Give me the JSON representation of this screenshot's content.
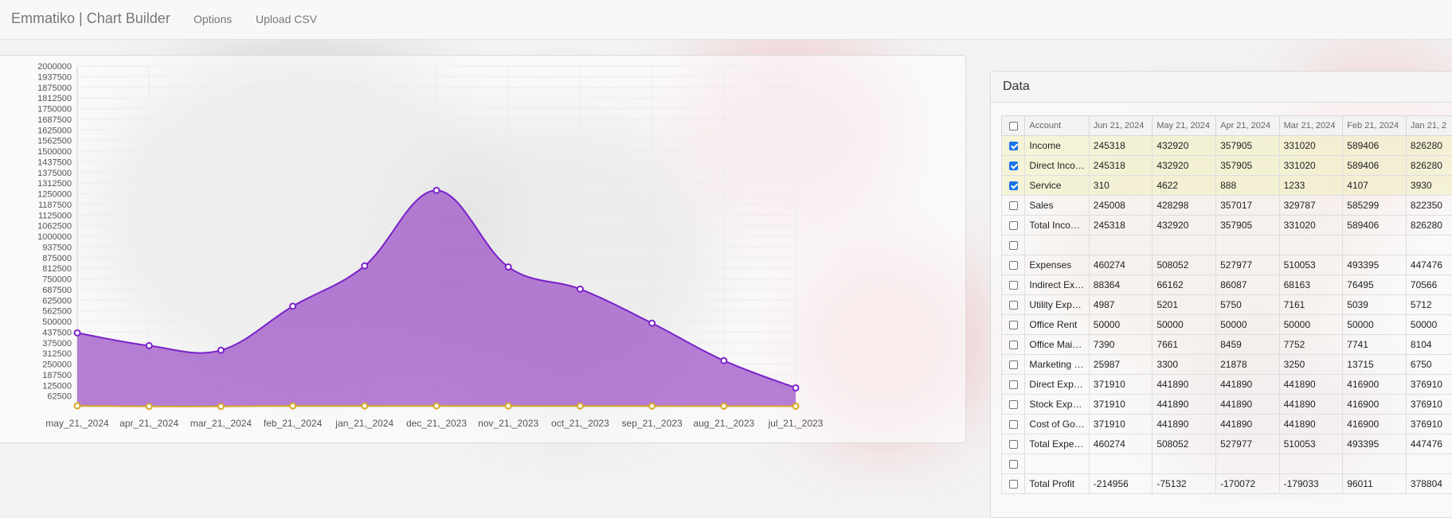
{
  "app": {
    "title": "Emmatiko | Chart Builder"
  },
  "nav": {
    "options": "Options",
    "upload": "Upload CSV"
  },
  "data_panel": {
    "title": "Data"
  },
  "table": {
    "columns": [
      "Account",
      "Jun 21, 2024",
      "May 21, 2024",
      "Apr 21, 2024",
      "Mar 21, 2024",
      "Feb 21, 2024",
      "Jan 21, 2"
    ],
    "rows": [
      {
        "checked": true,
        "cells": [
          "Income",
          "245318",
          "432920",
          "357905",
          "331020",
          "589406",
          "826280"
        ]
      },
      {
        "checked": true,
        "cells": [
          "Direct Inco…",
          "245318",
          "432920",
          "357905",
          "331020",
          "589406",
          "826280"
        ]
      },
      {
        "checked": true,
        "cells": [
          "Service",
          "310",
          "4622",
          "888",
          "1233",
          "4107",
          "3930"
        ]
      },
      {
        "checked": false,
        "cells": [
          "Sales",
          "245008",
          "428298",
          "357017",
          "329787",
          "585299",
          "822350"
        ]
      },
      {
        "checked": false,
        "cells": [
          "Total Inco…",
          "245318",
          "432920",
          "357905",
          "331020",
          "589406",
          "826280"
        ]
      },
      {
        "checked": false,
        "cells": [
          "",
          "",
          "",
          "",
          "",
          "",
          ""
        ]
      },
      {
        "checked": false,
        "cells": [
          "Expenses",
          "460274",
          "508052",
          "527977",
          "510053",
          "493395",
          "447476"
        ]
      },
      {
        "checked": false,
        "cells": [
          "Indirect Ex…",
          "88364",
          "66162",
          "86087",
          "68163",
          "76495",
          "70566"
        ]
      },
      {
        "checked": false,
        "cells": [
          "Utility Exp…",
          "4987",
          "5201",
          "5750",
          "7161",
          "5039",
          "5712"
        ]
      },
      {
        "checked": false,
        "cells": [
          "Office Rent",
          "50000",
          "50000",
          "50000",
          "50000",
          "50000",
          "50000"
        ]
      },
      {
        "checked": false,
        "cells": [
          "Office Mai…",
          "7390",
          "7661",
          "8459",
          "7752",
          "7741",
          "8104"
        ]
      },
      {
        "checked": false,
        "cells": [
          "Marketing …",
          "25987",
          "3300",
          "21878",
          "3250",
          "13715",
          "6750"
        ]
      },
      {
        "checked": false,
        "cells": [
          "Direct Exp…",
          "371910",
          "441890",
          "441890",
          "441890",
          "416900",
          "376910"
        ]
      },
      {
        "checked": false,
        "cells": [
          "Stock Exp…",
          "371910",
          "441890",
          "441890",
          "441890",
          "416900",
          "376910"
        ]
      },
      {
        "checked": false,
        "cells": [
          "Cost of Go…",
          "371910",
          "441890",
          "441890",
          "441890",
          "416900",
          "376910"
        ]
      },
      {
        "checked": false,
        "cells": [
          "Total Expe…",
          "460274",
          "508052",
          "527977",
          "510053",
          "493395",
          "447476"
        ]
      },
      {
        "checked": false,
        "cells": [
          "",
          "",
          "",
          "",
          "",
          "",
          ""
        ]
      },
      {
        "checked": false,
        "cells": [
          "Total Profit",
          "-214956",
          "-75132",
          "-170072",
          "-179033",
          "96011",
          "378804"
        ]
      }
    ]
  },
  "chart_data": {
    "type": "area",
    "categories": [
      "may_21,_2024",
      "apr_21,_2024",
      "mar_21,_2024",
      "feb_21,_2024",
      "jan_21,_2024",
      "dec_21,_2023",
      "nov_21,_2023",
      "oct_21,_2023",
      "sep_21,_2023",
      "aug_21,_2023",
      "jul_21,_2023"
    ],
    "series": [
      {
        "values": [
          432920,
          357905,
          331020,
          589406,
          826280,
          1270000,
          820000,
          690000,
          490000,
          270000,
          110000
        ],
        "color": "#9b4fc6"
      },
      {
        "values": [
          4622,
          888,
          1233,
          4107,
          3930,
          4200,
          3800,
          3500,
          3100,
          2800,
          2500
        ],
        "color": "#e0b840"
      }
    ],
    "yticks": [
      62500,
      125000,
      187500,
      250000,
      312500,
      375000,
      437500,
      500000,
      562500,
      625000,
      687500,
      750000,
      812500,
      875000,
      937500,
      1000000,
      1062500,
      1125000,
      1187500,
      1250000,
      1312500,
      1375000,
      1437500,
      1500000,
      1562500,
      1625000,
      1687500,
      1750000,
      1812500,
      1875000,
      1937500,
      2000000
    ],
    "ylim": [
      0,
      2000000
    ],
    "grid": true
  }
}
